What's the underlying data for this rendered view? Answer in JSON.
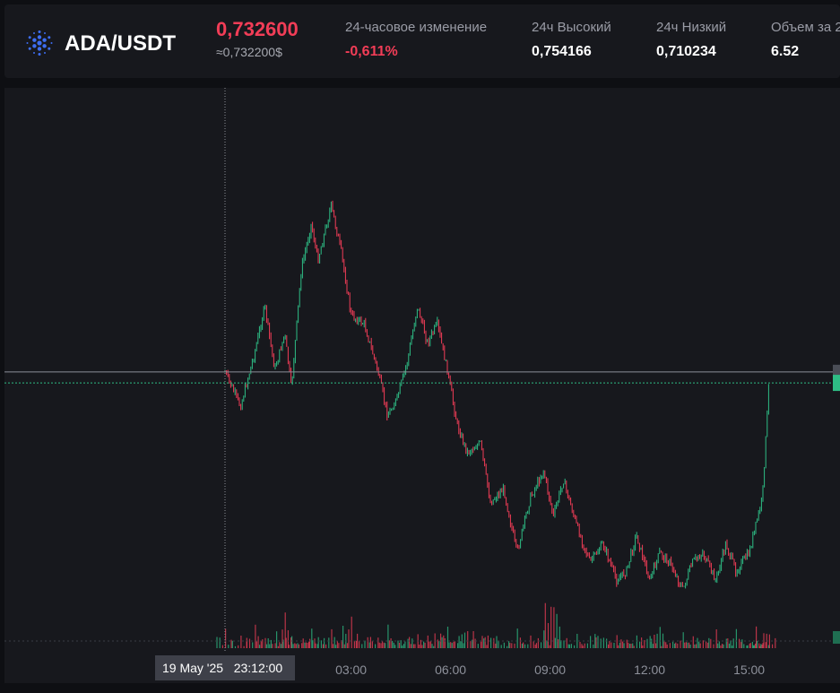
{
  "header": {
    "pair": "ADA/USDT",
    "coin_icon": "cardano-icon",
    "price": "0,732600",
    "price_usd": "≈0,732200$",
    "stats": [
      {
        "label": "24-часовое изменение",
        "value": "-0,611%",
        "negative": true
      },
      {
        "label": "24ч Высокий",
        "value": "0,754166",
        "negative": false
      },
      {
        "label": "24ч Низкий",
        "value": "0,710234",
        "negative": false
      },
      {
        "label": "Объем за 2",
        "value": "6.52",
        "negative": false
      }
    ]
  },
  "colors": {
    "up": "#2ebd85",
    "down": "#f23d57",
    "background": "#17181d",
    "page": "#0e0f13"
  },
  "chart_data": {
    "type": "line",
    "x_tick_labels": [
      "03:00",
      "06:00",
      "09:00",
      "12:00",
      "15:00"
    ],
    "crosshair_label": "19 May '25   23:12:00",
    "x": [
      "23:12",
      "23:40",
      "00:06",
      "00:24",
      "00:42",
      "01:00",
      "01:12",
      "01:30",
      "01:48",
      "02:00",
      "02:24",
      "02:42",
      "03:00",
      "03:24",
      "03:48",
      "04:06",
      "04:24",
      "04:42",
      "05:00",
      "05:18",
      "05:36",
      "05:54",
      "06:12",
      "06:30",
      "06:54",
      "07:12",
      "07:36",
      "08:00",
      "08:24",
      "08:48",
      "09:06",
      "09:24",
      "09:48",
      "10:12",
      "10:36",
      "11:00",
      "11:18",
      "11:36",
      "12:00",
      "12:18",
      "12:36",
      "13:00",
      "13:18",
      "13:36",
      "14:00",
      "14:18",
      "14:36",
      "15:00",
      "15:12",
      "15:24",
      "15:36"
    ],
    "y": [
      0.7338,
      0.73,
      0.736,
      0.741,
      0.734,
      0.738,
      0.732,
      0.745,
      0.75,
      0.746,
      0.752,
      0.747,
      0.74,
      0.739,
      0.734,
      0.729,
      0.731,
      0.735,
      0.741,
      0.737,
      0.739,
      0.734,
      0.728,
      0.725,
      0.726,
      0.7195,
      0.721,
      0.714,
      0.72,
      0.723,
      0.718,
      0.722,
      0.717,
      0.713,
      0.715,
      0.711,
      0.712,
      0.716,
      0.711,
      0.714,
      0.713,
      0.71,
      0.713,
      0.714,
      0.711,
      0.715,
      0.712,
      0.714,
      0.717,
      0.72,
      0.7326
    ],
    "volume": [
      3,
      2,
      4,
      3,
      2,
      5,
      3,
      2,
      3,
      4,
      3,
      2,
      6,
      3,
      2,
      4,
      3,
      2,
      3,
      2,
      4,
      3,
      2,
      5,
      3,
      4,
      2,
      3,
      2,
      3,
      12,
      3,
      2,
      3,
      4,
      2,
      3,
      2,
      3,
      4,
      2,
      3,
      2,
      3,
      4,
      2,
      3,
      2,
      3,
      2,
      4
    ],
    "ylim": [
      0.708,
      0.758
    ],
    "last_price": 0.7326,
    "crosshair_price": 0.7338,
    "grid": false
  }
}
